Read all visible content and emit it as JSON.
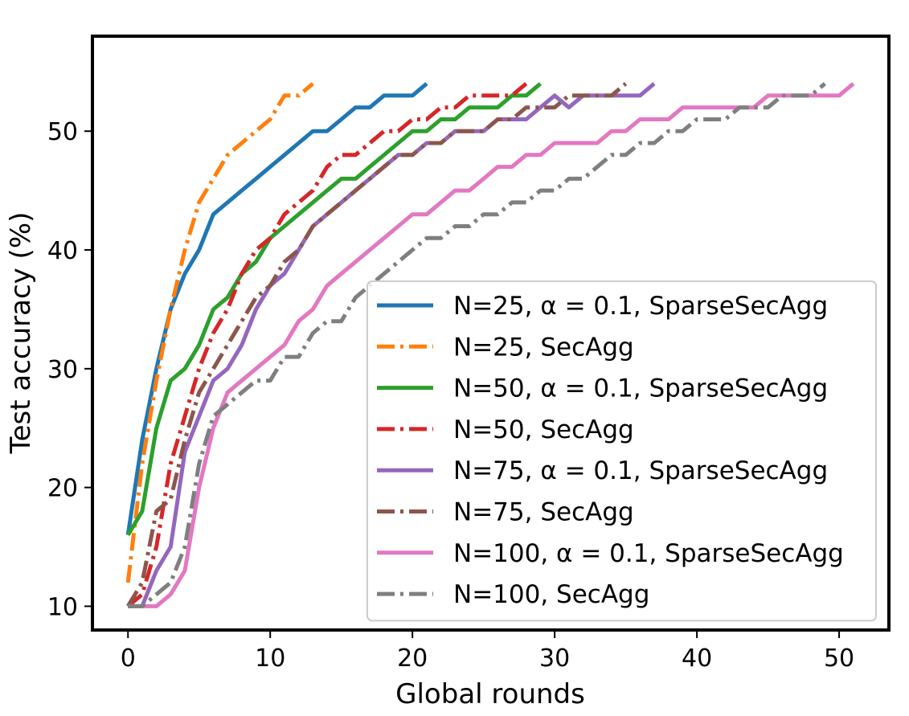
{
  "chart_data": {
    "type": "line",
    "xlabel": "Global rounds",
    "ylabel": "Test accuracy (%)",
    "xlim": [
      -2.5,
      53.5
    ],
    "ylim": [
      8,
      58
    ],
    "xticks": [
      0,
      10,
      20,
      30,
      40,
      50
    ],
    "yticks": [
      10,
      20,
      30,
      40,
      50
    ],
    "grid": false,
    "legend_position": "lower-right",
    "series": [
      {
        "name": "N=25, α = 0.1, SparseSecAgg",
        "color": "#1f77b4",
        "dash": "solid",
        "x": [
          0,
          1,
          2,
          3,
          4,
          5,
          6,
          7,
          8,
          9,
          10,
          11,
          12,
          13,
          14,
          15,
          16,
          17,
          18,
          19,
          20,
          21
        ],
        "y": [
          16,
          24,
          30,
          35,
          38,
          40,
          43,
          44,
          45,
          46,
          47,
          48,
          49,
          50,
          50,
          51,
          52,
          52,
          53,
          53,
          53,
          54
        ]
      },
      {
        "name": "N=25, SecAgg",
        "color": "#ff7f0e",
        "dash": "dashdot",
        "x": [
          0,
          1,
          2,
          3,
          4,
          5,
          6,
          7,
          8,
          9,
          10,
          11,
          12,
          13
        ],
        "y": [
          12,
          22,
          29,
          35,
          40,
          44,
          46,
          48,
          49,
          50,
          51,
          53,
          53,
          54
        ]
      },
      {
        "name": "N=50, α = 0.1, SparseSecAgg",
        "color": "#2ca02c",
        "dash": "solid",
        "x": [
          0,
          1,
          2,
          3,
          4,
          5,
          6,
          7,
          8,
          9,
          10,
          11,
          12,
          13,
          14,
          15,
          16,
          17,
          18,
          19,
          20,
          21,
          22,
          23,
          24,
          25,
          26,
          27,
          28,
          29
        ],
        "y": [
          16,
          18,
          25,
          29,
          30,
          32,
          35,
          36,
          38,
          39,
          41,
          42,
          43,
          44,
          45,
          46,
          46,
          47,
          48,
          49,
          50,
          50,
          51,
          51,
          52,
          52,
          52,
          53,
          53,
          54
        ]
      },
      {
        "name": "N=50, SecAgg",
        "color": "#d62728",
        "dash": "dashdot",
        "x": [
          0,
          1,
          2,
          3,
          4,
          5,
          6,
          7,
          8,
          9,
          10,
          11,
          12,
          13,
          14,
          15,
          16,
          17,
          18,
          19,
          20,
          21,
          22,
          23,
          24,
          25,
          26,
          27,
          28
        ],
        "y": [
          10,
          11,
          15,
          22,
          26,
          30,
          33,
          35,
          38,
          40,
          41,
          43,
          44,
          45,
          47,
          48,
          48,
          49,
          50,
          50,
          51,
          51,
          52,
          52,
          53,
          53,
          53,
          53,
          54
        ]
      },
      {
        "name": "N=75, α = 0.1, SparseSecAgg",
        "color": "#9467bd",
        "dash": "solid",
        "x": [
          0,
          1,
          2,
          3,
          4,
          5,
          6,
          7,
          8,
          9,
          10,
          11,
          12,
          13,
          14,
          15,
          16,
          17,
          18,
          19,
          20,
          21,
          22,
          23,
          24,
          25,
          26,
          27,
          28,
          29,
          30,
          31,
          32,
          33,
          34,
          35,
          36,
          37
        ],
        "y": [
          10,
          10,
          13,
          15,
          23,
          26,
          29,
          30,
          32,
          35,
          37,
          38,
          40,
          42,
          43,
          44,
          45,
          46,
          47,
          48,
          48,
          49,
          49,
          50,
          50,
          50,
          51,
          51,
          51,
          52,
          53,
          52,
          53,
          53,
          53,
          53,
          53,
          54
        ]
      },
      {
        "name": "N=75, SecAgg",
        "color": "#8c564b",
        "dash": "dashdot",
        "x": [
          0,
          1,
          2,
          3,
          4,
          5,
          6,
          7,
          8,
          9,
          10,
          11,
          12,
          13,
          14,
          15,
          16,
          17,
          18,
          19,
          20,
          21,
          22,
          23,
          24,
          25,
          26,
          27,
          28,
          29,
          30,
          31,
          32,
          33,
          34,
          35
        ],
        "y": [
          10,
          12,
          18,
          19,
          24,
          28,
          30,
          32,
          34,
          36,
          37,
          39,
          40,
          42,
          43,
          44,
          45,
          46,
          47,
          48,
          48,
          49,
          49,
          50,
          50,
          50,
          51,
          51,
          52,
          52,
          52,
          53,
          53,
          53,
          53,
          54
        ]
      },
      {
        "name": "N=100, α = 0.1, SparseSecAgg",
        "color": "#e377c2",
        "dash": "solid",
        "x": [
          0,
          1,
          2,
          3,
          4,
          5,
          6,
          7,
          8,
          9,
          10,
          11,
          12,
          13,
          14,
          15,
          16,
          17,
          18,
          19,
          20,
          21,
          22,
          23,
          24,
          25,
          26,
          27,
          28,
          29,
          30,
          31,
          32,
          33,
          34,
          35,
          36,
          37,
          38,
          39,
          40,
          41,
          42,
          43,
          44,
          45,
          46,
          47,
          48,
          49,
          50,
          51
        ],
        "y": [
          10,
          10,
          10,
          11,
          13,
          20,
          25,
          28,
          29,
          30,
          31,
          32,
          34,
          35,
          37,
          38,
          39,
          40,
          41,
          42,
          43,
          43,
          44,
          45,
          45,
          46,
          47,
          47,
          48,
          48,
          49,
          49,
          49,
          49,
          50,
          50,
          51,
          51,
          51,
          52,
          52,
          52,
          52,
          52,
          52,
          53,
          53,
          53,
          53,
          53,
          53,
          54
        ]
      },
      {
        "name": "N=100, SecAgg",
        "color": "#7f7f7f",
        "dash": "dashdot",
        "x": [
          0,
          1,
          2,
          3,
          4,
          5,
          6,
          7,
          8,
          9,
          10,
          11,
          12,
          13,
          14,
          15,
          16,
          17,
          18,
          19,
          20,
          21,
          22,
          23,
          24,
          25,
          26,
          27,
          28,
          29,
          30,
          31,
          32,
          33,
          34,
          35,
          36,
          37,
          38,
          39,
          40,
          41,
          42,
          43,
          44,
          45,
          46,
          47,
          48,
          49
        ],
        "y": [
          10,
          10,
          11,
          12,
          15,
          22,
          26,
          27,
          28,
          29,
          29,
          31,
          31,
          33,
          34,
          34,
          36,
          37,
          38,
          39,
          40,
          41,
          41,
          42,
          42,
          43,
          43,
          44,
          44,
          45,
          45,
          46,
          46,
          47,
          48,
          48,
          49,
          49,
          50,
          50,
          51,
          51,
          51,
          52,
          52,
          52,
          53,
          53,
          53,
          54
        ]
      }
    ]
  }
}
